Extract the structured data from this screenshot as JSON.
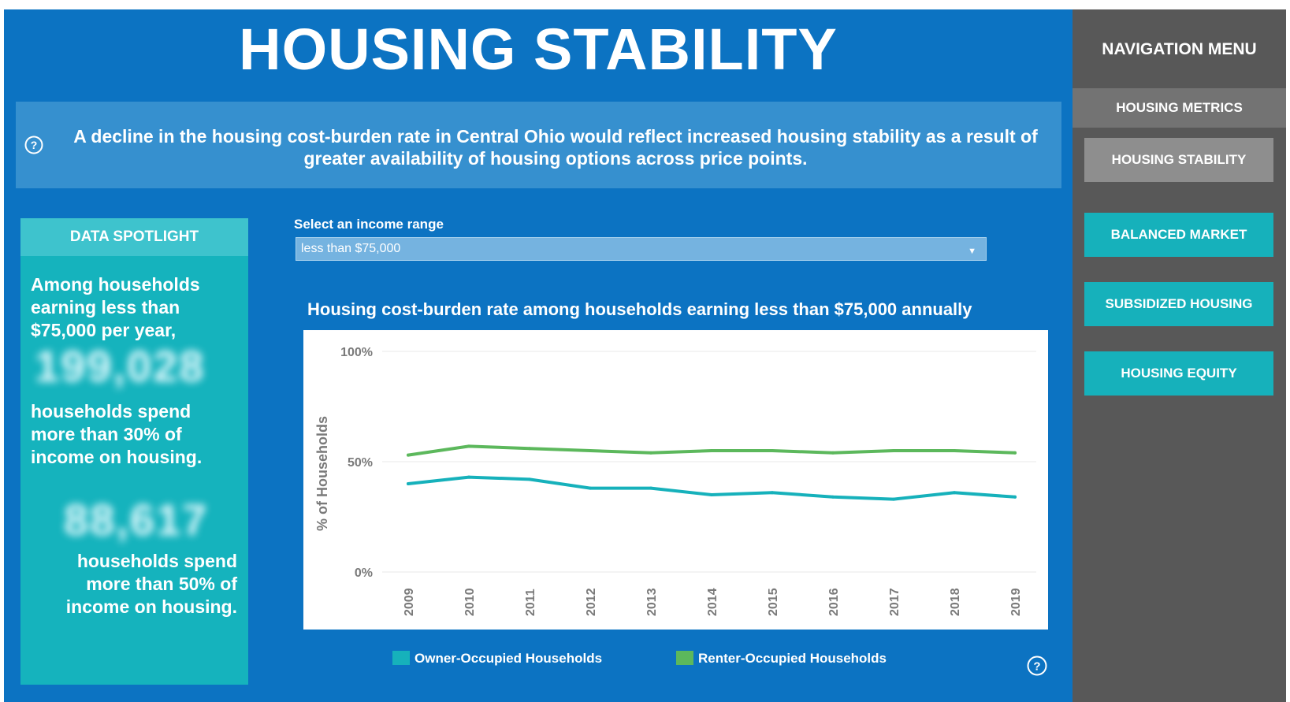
{
  "header": {
    "title": "HOUSING STABILITY"
  },
  "banner": {
    "text": "A decline in the housing cost-burden rate in Central Ohio would reflect increased housing stability as a result of greater availability of housing options across price points."
  },
  "spotlight": {
    "heading": "DATA SPOTLIGHT",
    "text1": "Among households earning less than $75,000 per year,",
    "number1": "199,028",
    "text2": "households spend more than 30% of income on housing.",
    "number2": "88,617",
    "text3": "households spend more than 50% of income on housing."
  },
  "filter": {
    "label": "Select an income range",
    "selected": "less than $75,000"
  },
  "nav": {
    "title": "NAVIGATION MENU",
    "section": "HOUSING METRICS",
    "items": [
      "HOUSING STABILITY",
      "BALANCED MARKET",
      "SUBSIDIZED HOUSING",
      "HOUSING EQUITY"
    ]
  },
  "colors": {
    "owner": "#16b1bb",
    "renter": "#5cb85c",
    "background": "#0c73c2",
    "nav": "#585858"
  },
  "chart_data": {
    "type": "line",
    "title": "Housing cost-burden rate among households earning less than $75,000 annually",
    "ylabel": "% of Households",
    "xlabel": "",
    "x": [
      "2009",
      "2010",
      "2011",
      "2012",
      "2013",
      "2014",
      "2015",
      "2016",
      "2017",
      "2018",
      "2019"
    ],
    "yticks": [
      "0%",
      "50%",
      "100%"
    ],
    "ylim": [
      0,
      100
    ],
    "grid": true,
    "legend": "bottom",
    "series": [
      {
        "name": "Owner-Occupied Households",
        "color": "#16b1bb",
        "values": [
          40,
          43,
          42,
          38,
          38,
          35,
          36,
          34,
          33,
          36,
          34
        ]
      },
      {
        "name": "Renter-Occupied Households",
        "color": "#5cb85c",
        "values": [
          53,
          57,
          56,
          55,
          54,
          55,
          55,
          54,
          55,
          55,
          54
        ]
      }
    ]
  }
}
